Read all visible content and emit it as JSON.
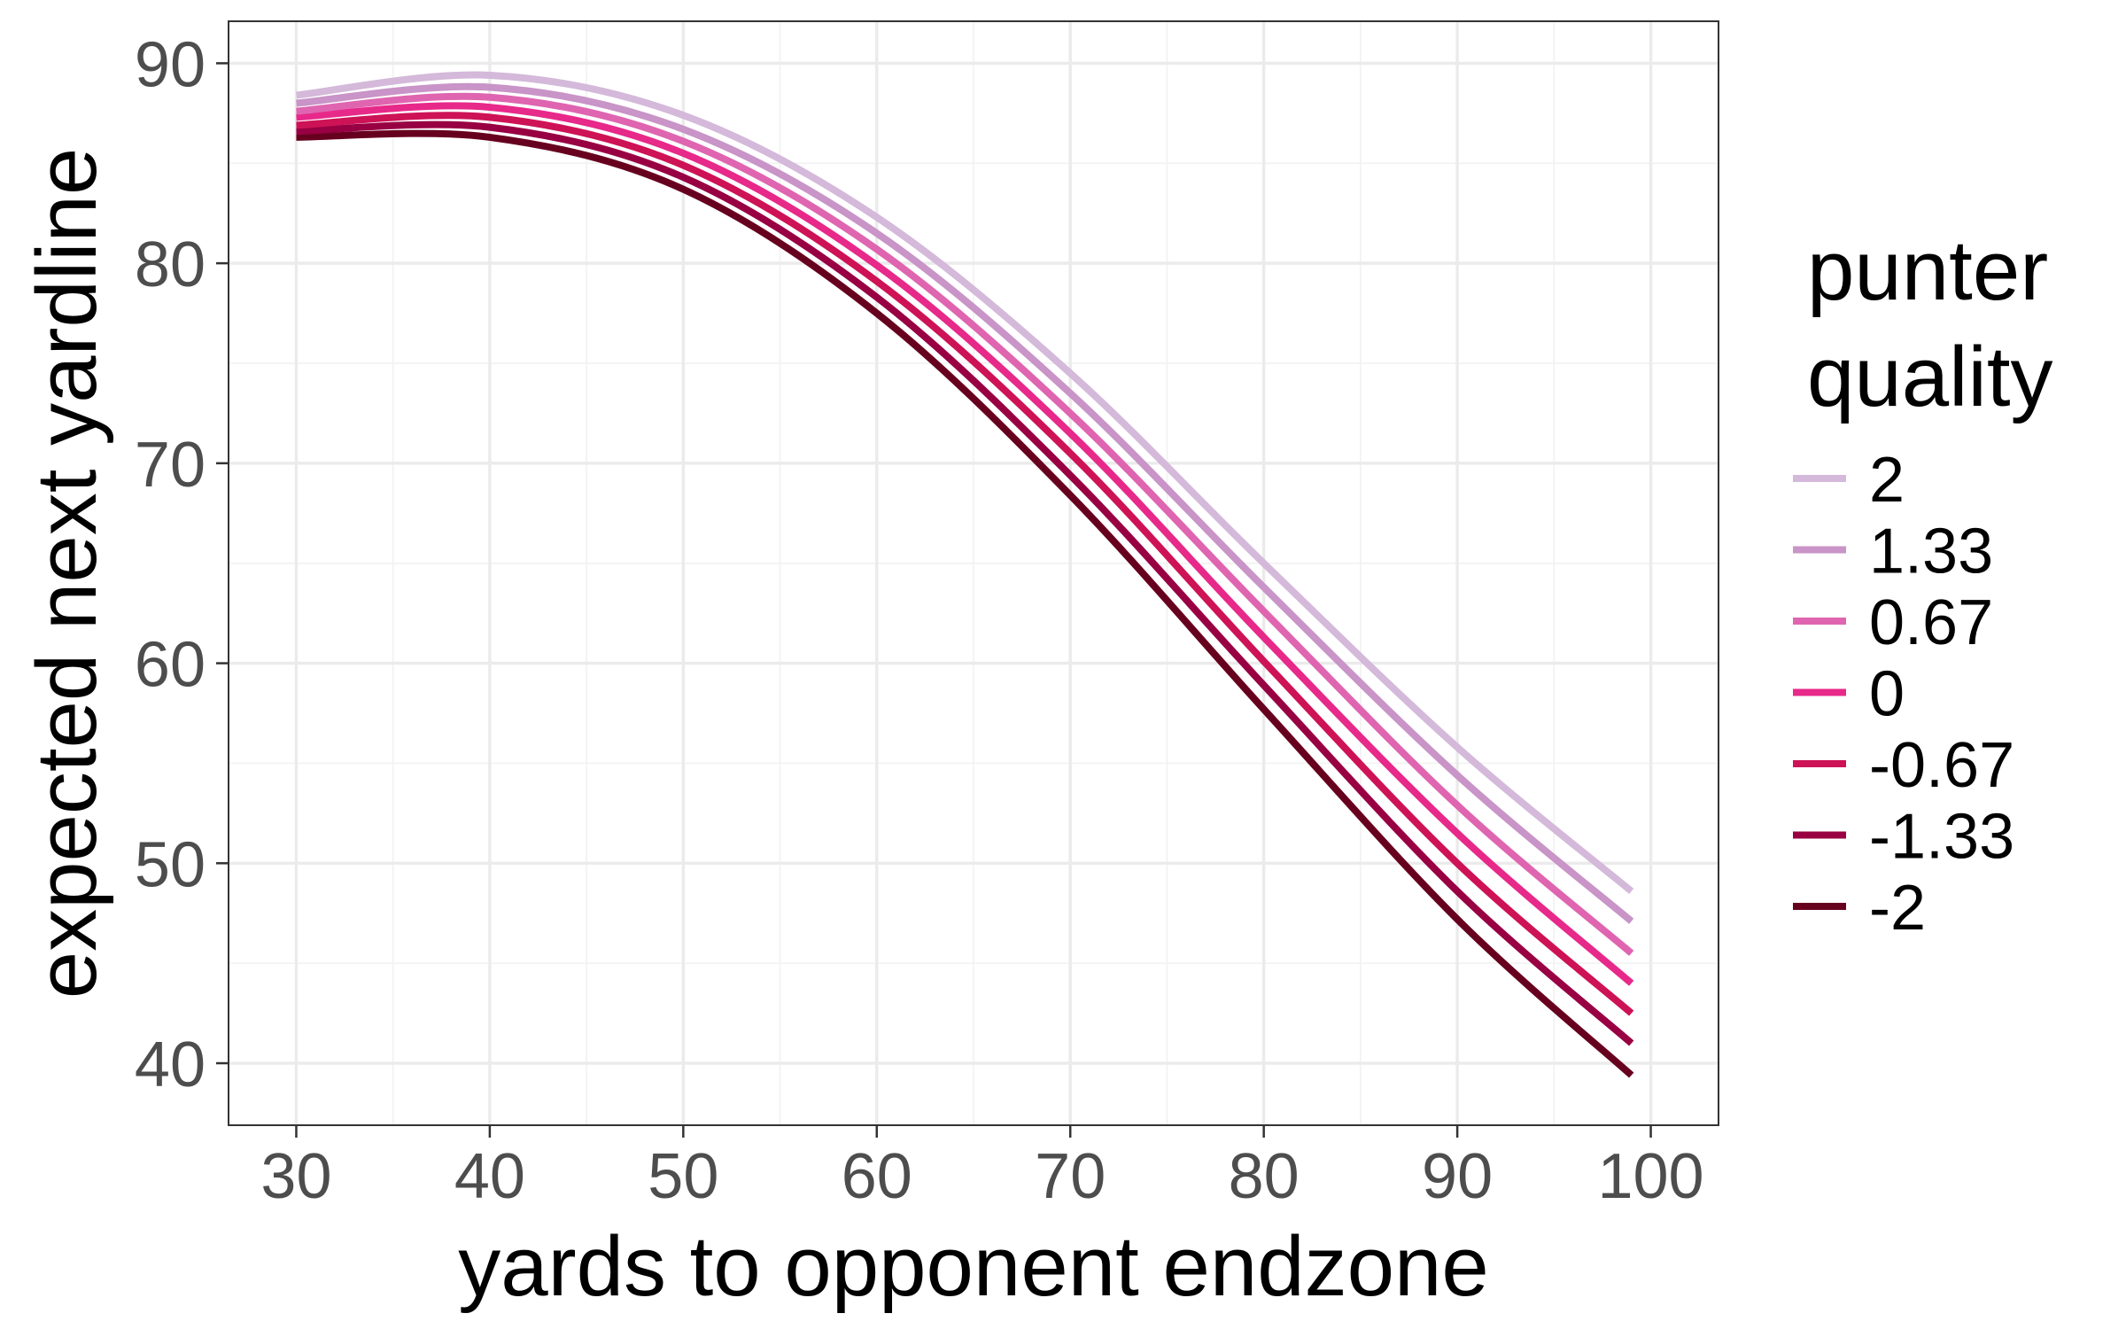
{
  "chart_data": {
    "type": "line",
    "title": "",
    "xlabel": "yards to opponent endzone",
    "ylabel": "expected next yardline",
    "xlim": [
      26.5,
      103.5
    ],
    "ylim": [
      36.9,
      92.1
    ],
    "x_ticks": [
      30,
      40,
      50,
      60,
      70,
      80,
      90,
      100
    ],
    "y_ticks": [
      40,
      50,
      60,
      70,
      80,
      90
    ],
    "grid": true,
    "legend": {
      "title_lines": [
        "punter",
        "quality"
      ],
      "placement": "right"
    },
    "x": [
      30,
      40,
      50,
      60,
      70,
      80,
      90,
      99
    ],
    "series": [
      {
        "name": "2",
        "color": "#d4b9da",
        "values": [
          88.4,
          89.4,
          87.4,
          82.3,
          74.5,
          65.0,
          55.8,
          48.6
        ]
      },
      {
        "name": "1.33",
        "color": "#c994c7",
        "values": [
          88.0,
          88.8,
          86.7,
          81.5,
          73.5,
          63.8,
          54.4,
          47.1
        ]
      },
      {
        "name": "0.67",
        "color": "#df65b0",
        "values": [
          87.6,
          88.3,
          86.1,
          80.7,
          72.5,
          62.6,
          52.9,
          45.5
        ]
      },
      {
        "name": "0",
        "color": "#e7298a",
        "values": [
          87.3,
          87.8,
          85.5,
          79.9,
          71.5,
          61.3,
          51.5,
          44.0
        ]
      },
      {
        "name": "-0.67",
        "color": "#ce1256",
        "values": [
          86.9,
          87.3,
          84.9,
          79.1,
          70.5,
          60.1,
          50.0,
          42.5
        ]
      },
      {
        "name": "-1.33",
        "color": "#980043",
        "values": [
          86.6,
          86.8,
          84.3,
          78.3,
          69.4,
          58.9,
          48.6,
          41.0
        ]
      },
      {
        "name": "-2",
        "color": "#67001f",
        "values": [
          86.3,
          86.3,
          83.7,
          77.5,
          68.4,
          57.7,
          47.2,
          39.4
        ]
      }
    ]
  }
}
